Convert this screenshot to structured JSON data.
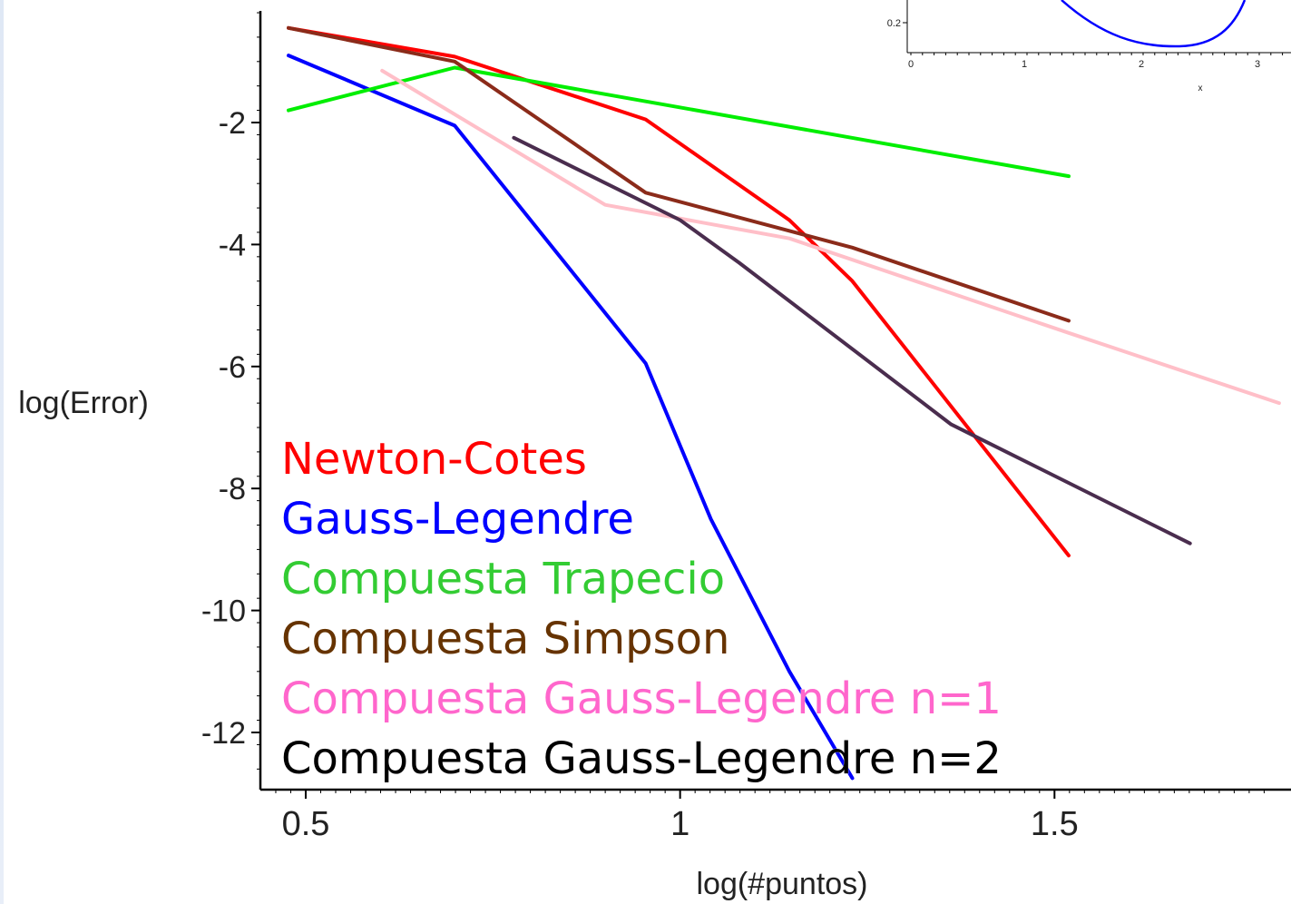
{
  "chart_data": {
    "type": "line",
    "xlabel": "log(#puntos)",
    "ylabel": "log(Error)",
    "xlim": [
      0.455,
      1.8
    ],
    "ylim": [
      -13,
      0
    ],
    "x_ticks": [
      {
        "value": 0.5,
        "label": "0.5"
      },
      {
        "value": 1,
        "label": "1"
      },
      {
        "value": 1.5,
        "label": "1.5"
      }
    ],
    "y_ticks": [
      {
        "value": -2,
        "label": "-2"
      },
      {
        "value": -4,
        "label": "-4"
      },
      {
        "value": -6,
        "label": "-6"
      },
      {
        "value": -8,
        "label": "-8"
      },
      {
        "value": -10,
        "label": "-10"
      },
      {
        "value": -12,
        "label": "-12"
      }
    ],
    "series": [
      {
        "name": "Newton-Cotes",
        "color": "#ff0000",
        "x": [
          0.477,
          0.699,
          0.954,
          1.146,
          1.23,
          1.519
        ],
        "y": [
          -0.45,
          -0.92,
          -1.95,
          -3.6,
          -4.6,
          -9.1
        ]
      },
      {
        "name": "Gauss-Legendre",
        "color": "#0000ff",
        "x": [
          0.477,
          0.699,
          0.954,
          1.041,
          1.146,
          1.23
        ],
        "y": [
          -0.9,
          -2.05,
          -5.95,
          -8.5,
          -11.0,
          -12.75
        ]
      },
      {
        "name": "Compuesta Trapecio",
        "color": "#00ee00",
        "x": [
          0.477,
          0.699,
          1.519
        ],
        "y": [
          -1.8,
          -1.1,
          -2.88
        ]
      },
      {
        "name": "Compuesta Simpson",
        "color": "#8b2b1a",
        "x": [
          0.477,
          0.699,
          0.954,
          1.23,
          1.519
        ],
        "y": [
          -0.45,
          -1.0,
          -3.15,
          -4.05,
          -5.25
        ]
      },
      {
        "name": "Compuesta Gauss-Legendre n=1",
        "color": "#ffbfc8",
        "x": [
          0.602,
          0.9,
          1.146,
          1.519,
          1.8
        ],
        "y": [
          -1.15,
          -3.35,
          -3.9,
          -5.45,
          -6.6
        ]
      },
      {
        "name": "Compuesta Gauss-Legendre n=2",
        "color": "#4a2d4e",
        "x": [
          0.778,
          1.0,
          1.079,
          1.362,
          1.681
        ],
        "y": [
          -2.25,
          -3.6,
          -4.3,
          -6.95,
          -8.9
        ]
      }
    ],
    "legend": {
      "placement": "bottom-left",
      "entries": [
        {
          "label": "Newton-Cotes",
          "color": "#ff0000"
        },
        {
          "label": "Gauss-Legendre",
          "color": "#0000ff"
        },
        {
          "label": "Compuesta Trapecio",
          "color": "#33cc33"
        },
        {
          "label": "Compuesta Simpson",
          "color": "#663300"
        },
        {
          "label": "Compuesta Gauss-Legendre n=1",
          "color": "#ff66cc"
        },
        {
          "label": "Compuesta Gauss-Legendre n=2",
          "color": "#000000"
        }
      ]
    }
  },
  "inset": {
    "type": "line",
    "color": "#0000ff",
    "xlabel": "x",
    "x_ticks": [
      "0",
      "1",
      "2",
      "3"
    ],
    "y_tick": "0.2"
  }
}
